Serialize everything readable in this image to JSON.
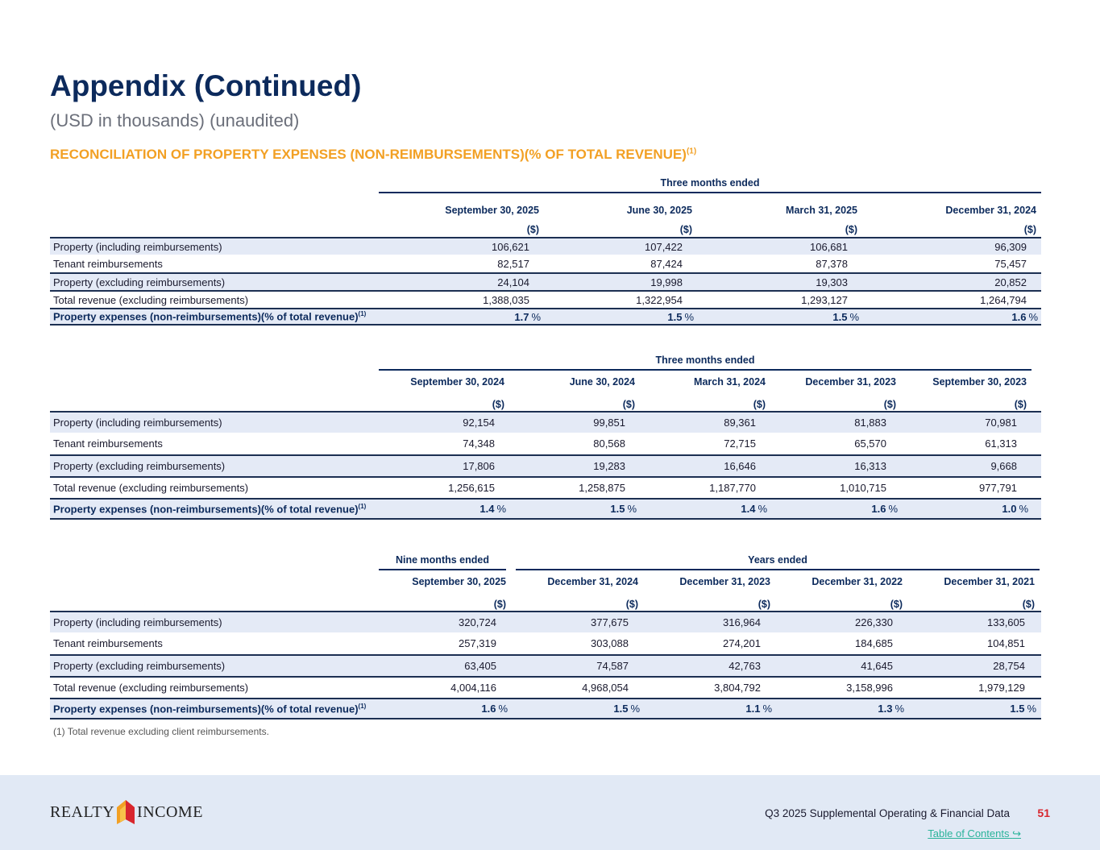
{
  "header": {
    "title": "Appendix (Continued)",
    "subtitle": "(USD in thousands) (unaudited)",
    "section_title": "RECONCILIATION OF PROPERTY EXPENSES (NON-REIMBURSEMENTS)(% OF TOTAL REVENUE)",
    "section_sup": "(1)"
  },
  "row_labels": [
    "Property (including reimbursements)",
    "Tenant reimbursements",
    "Property (excluding reimbursements)",
    "Total revenue (excluding reimbursements)",
    "Property expenses (non-reimbursements)(% of total revenue)"
  ],
  "row_label_sup": "(1)",
  "unit_label": "($)",
  "pct_sign": "%",
  "tables": [
    {
      "groups": [
        {
          "label": "Three months ended",
          "span": 4
        }
      ],
      "columns": [
        "September 30, 2025",
        "June 30, 2025",
        "March 31, 2025",
        "December 31, 2024"
      ],
      "rows": [
        [
          "106,621",
          "107,422",
          "106,681",
          "96,309"
        ],
        [
          "82,517",
          "87,424",
          "87,378",
          "75,457"
        ],
        [
          "24,104",
          "19,998",
          "19,303",
          "20,852"
        ],
        [
          "1,388,035",
          "1,322,954",
          "1,293,127",
          "1,264,794"
        ],
        [
          "1.7",
          "1.5",
          "1.5",
          "1.6"
        ]
      ]
    },
    {
      "groups": [
        {
          "label": "Three months ended",
          "span": 5
        }
      ],
      "columns": [
        "September 30, 2024",
        "June 30, 2024",
        "March 31, 2024",
        "December 31, 2023",
        "September 30, 2023"
      ],
      "rows": [
        [
          "92,154",
          "99,851",
          "89,361",
          "81,883",
          "70,981"
        ],
        [
          "74,348",
          "80,568",
          "72,715",
          "65,570",
          "61,313"
        ],
        [
          "17,806",
          "19,283",
          "16,646",
          "16,313",
          "9,668"
        ],
        [
          "1,256,615",
          "1,258,875",
          "1,187,770",
          "1,010,715",
          "977,791"
        ],
        [
          "1.4",
          "1.5",
          "1.4",
          "1.6",
          "1.0"
        ]
      ]
    },
    {
      "groups": [
        {
          "label": "Nine months ended",
          "span": 1
        },
        {
          "label": "Years ended",
          "span": 4
        }
      ],
      "columns": [
        "September 30, 2025",
        "December 31, 2024",
        "December 31, 2023",
        "December 31, 2022",
        "December 31, 2021"
      ],
      "rows": [
        [
          "320,724",
          "377,675",
          "316,964",
          "226,330",
          "133,605"
        ],
        [
          "257,319",
          "303,088",
          "274,201",
          "184,685",
          "104,851"
        ],
        [
          "63,405",
          "74,587",
          "42,763",
          "41,645",
          "28,754"
        ],
        [
          "4,004,116",
          "4,968,054",
          "3,804,792",
          "3,158,996",
          "1,979,129"
        ],
        [
          "1.6",
          "1.5",
          "1.1",
          "1.3",
          "1.5"
        ]
      ]
    }
  ],
  "footnote": "(1)  Total revenue excluding client reimbursements.",
  "footer": {
    "logo_text_left": "REALTY",
    "logo_text_right": "INCOME",
    "doc_title": "Q3 2025 Supplemental Operating & Financial Data",
    "page_number": "51",
    "toc_link": "Table of Contents",
    "toc_icon": "arrow-return-icon"
  },
  "colors": {
    "navy": "#0c2a5c",
    "orange": "#f2a024",
    "shade": "#e4eaf6",
    "page_red": "#d8262e",
    "link_teal": "#2bb39a"
  }
}
